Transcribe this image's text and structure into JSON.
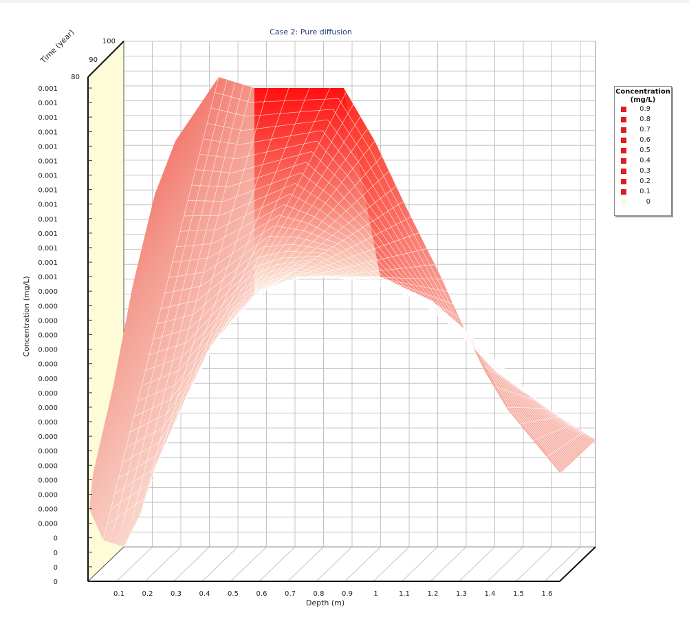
{
  "chart_data": {
    "type": "surface3d",
    "title": "Case 2: Pure diffusion",
    "xlabel": "Depth (m)",
    "ylabel": "Concentration (mg/L)",
    "zlabel": "Time (year)",
    "x_ticks": [
      "0.1",
      "0.2",
      "0.3",
      "0.4",
      "0.5",
      "0.6",
      "0.7",
      "0.8",
      "0.9",
      "1",
      "1.1",
      "1.2",
      "1.3",
      "1.4",
      "1.5",
      "1.6"
    ],
    "z_ticks": [
      "80",
      "90",
      "100"
    ],
    "y_ticks": [
      "0.001",
      "0.001",
      "0.001",
      "0.001",
      "0.001",
      "0.001",
      "0.001",
      "0.001",
      "0.001",
      "0.001",
      "0.001",
      "0.001",
      "0.001",
      "0.001",
      "0.000",
      "0.000",
      "0.000",
      "0.000",
      "0.000",
      "0.000",
      "0.000",
      "0.000",
      "0.000",
      "0.000",
      "0.000",
      "0.000",
      "0.000",
      "0.000",
      "0.000",
      "0.000",
      "0.000",
      "0",
      "0",
      "0",
      "0"
    ],
    "grid": true,
    "legend_position": "right",
    "legend": {
      "title": "Concentration (mg/L)",
      "entries": [
        {
          "label": "0.9",
          "color": "#e11c1c"
        },
        {
          "label": "0.8",
          "color": "#e11c1c"
        },
        {
          "label": "0.7",
          "color": "#e11c1c"
        },
        {
          "label": "0.6",
          "color": "#e11c1c"
        },
        {
          "label": "0.5",
          "color": "#e11c1c"
        },
        {
          "label": "0.4",
          "color": "#e11c1c"
        },
        {
          "label": "0.3",
          "color": "#e11c1c"
        },
        {
          "label": "0.2",
          "color": "#e11c1c"
        },
        {
          "label": "0.1",
          "color": "#e11c1c"
        },
        {
          "label": "0",
          "color": "#fbf8e2"
        }
      ]
    },
    "surface": {
      "front_profile_depth": [
        0.0,
        0.1,
        0.2,
        0.3,
        0.4,
        0.5,
        0.6,
        0.7,
        0.8,
        0.9,
        1.0,
        1.1,
        1.2,
        1.3,
        1.4,
        1.5,
        1.6,
        1.65
      ],
      "front_profile_level": [
        0.0,
        0.02,
        0.12,
        0.25,
        0.45,
        0.58,
        0.75,
        0.75,
        0.75,
        0.75,
        0.73,
        0.62,
        0.55,
        0.48,
        0.32,
        0.2,
        0.1,
        0.22
      ],
      "back_profile_depth": [
        0.3,
        0.45,
        0.55,
        0.7,
        0.85,
        0.9,
        1.1,
        1.3,
        1.45,
        1.6,
        1.65
      ],
      "back_profile_level": [
        0.85,
        1.0,
        0.98,
        0.98,
        0.98,
        0.98,
        0.8,
        0.55,
        0.3,
        0.18,
        0.2
      ]
    },
    "colors": {
      "high": "#ff1a10",
      "low": "#fbf6e0",
      "grid": "#c4c4c4",
      "wall": "#fdfbd8",
      "mesh": "#ffffff"
    }
  }
}
